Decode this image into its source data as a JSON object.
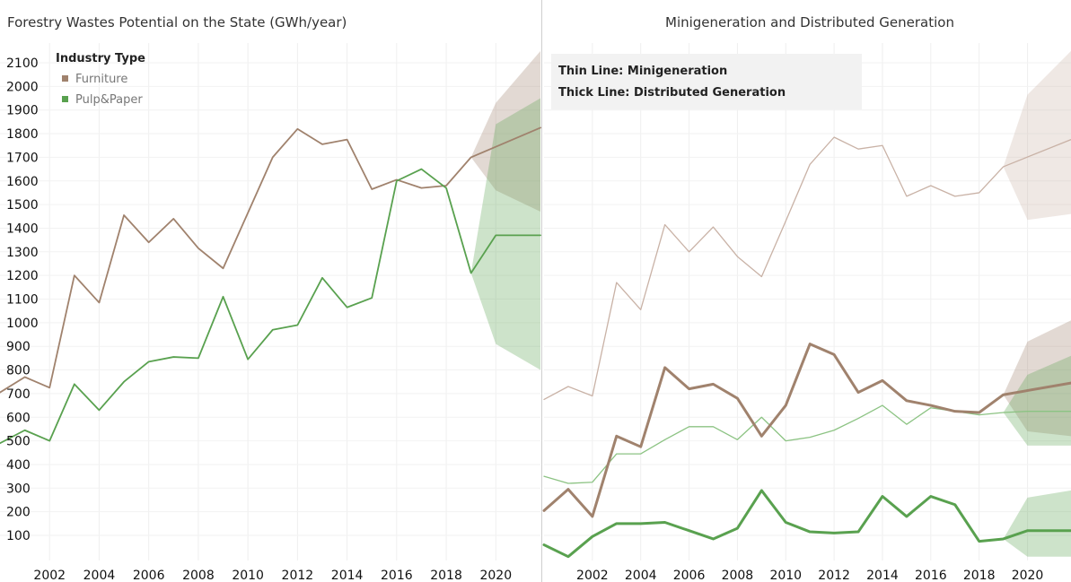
{
  "chart_data": [
    {
      "type": "line",
      "title": "Forestry Wastes Potential on the State (GWh/year)",
      "legend": {
        "title": "Industry Type",
        "placement": "top-left",
        "items": [
          {
            "label": "Furniture",
            "color": "#a0826d"
          },
          {
            "label": "Pulp&Paper",
            "color": "#59a14f"
          }
        ]
      },
      "x_ticks": [
        "2002",
        "2004",
        "2006",
        "2008",
        "2010",
        "2012",
        "2014",
        "2016",
        "2018",
        "2020"
      ],
      "y_ticks": [
        "100",
        "200",
        "300",
        "400",
        "500",
        "600",
        "700",
        "800",
        "900",
        "1000",
        "1100",
        "1200",
        "1300",
        "1400",
        "1500",
        "1600",
        "1700",
        "1800",
        "1900",
        "2000",
        "2100"
      ],
      "xlim": [
        2000,
        2021.8
      ],
      "ylim": [
        0,
        2150
      ],
      "grid": true,
      "series": [
        {
          "name": "Furniture",
          "color": "#a0826d",
          "x": [
            2000,
            2001,
            2002,
            2003,
            2004,
            2005,
            2006,
            2007,
            2008,
            2009,
            2010,
            2011,
            2012,
            2013,
            2014,
            2015,
            2016,
            2017,
            2018,
            2019,
            2021.8
          ],
          "values": [
            705,
            770,
            725,
            1200,
            1085,
            1455,
            1340,
            1440,
            1315,
            1230,
            1465,
            1700,
            1820,
            1755,
            1775,
            1565,
            1605,
            1570,
            1580,
            1700,
            1825
          ],
          "forecast_band": {
            "x": [
              2019,
              2020,
              2021.8
            ],
            "lower": [
              1700,
              1560,
              1470
            ],
            "upper": [
              1700,
              1930,
              2150
            ]
          }
        },
        {
          "name": "Pulp&Paper",
          "color": "#59a14f",
          "x": [
            2000,
            2001,
            2002,
            2003,
            2004,
            2005,
            2006,
            2007,
            2008,
            2009,
            2010,
            2011,
            2012,
            2013,
            2014,
            2015,
            2016,
            2017,
            2018,
            2019,
            2020,
            2021.8
          ],
          "values": [
            490,
            545,
            500,
            740,
            630,
            750,
            835,
            855,
            850,
            1110,
            845,
            970,
            990,
            1190,
            1065,
            1105,
            1600,
            1650,
            1570,
            1210,
            1370,
            1370
          ],
          "forecast_band": {
            "x": [
              2019,
              2020,
              2021.8
            ],
            "lower": [
              1210,
              910,
              800
            ],
            "upper": [
              1210,
              1840,
              1950
            ]
          }
        }
      ]
    },
    {
      "type": "line",
      "title": "Minigeneration and Distributed Generation",
      "annotation": {
        "line1": "Thin Line: Minigeneration",
        "line2": "Thick Line: Distributed Generation"
      },
      "x_ticks": [
        "2002",
        "2004",
        "2006",
        "2008",
        "2010",
        "2012",
        "2014",
        "2016",
        "2018",
        "2020"
      ],
      "xlim": [
        2000,
        2021.8
      ],
      "ylim": [
        0,
        2150
      ],
      "grid": true,
      "series": [
        {
          "name": "Furniture",
          "line": "thin",
          "color": "#c9b2a6",
          "x": [
            2000,
            2001,
            2002,
            2003,
            2004,
            2005,
            2006,
            2007,
            2008,
            2009,
            2010,
            2011,
            2012,
            2013,
            2014,
            2015,
            2016,
            2017,
            2018,
            2019,
            2021.8
          ],
          "values": [
            675,
            730,
            690,
            1170,
            1055,
            1415,
            1300,
            1405,
            1280,
            1195,
            1430,
            1670,
            1785,
            1735,
            1750,
            1535,
            1580,
            1535,
            1550,
            1660,
            1775
          ],
          "forecast_band": {
            "x": [
              2019,
              2020,
              2021.8
            ],
            "lower": [
              1660,
              1435,
              1460
            ],
            "upper": [
              1660,
              1965,
              2150
            ]
          }
        },
        {
          "name": "Pulp&Paper",
          "line": "thin",
          "color": "#8cc383",
          "x": [
            2000,
            2001,
            2002,
            2003,
            2004,
            2005,
            2006,
            2007,
            2008,
            2009,
            2010,
            2011,
            2012,
            2013,
            2014,
            2015,
            2016,
            2017,
            2018,
            2019,
            2020,
            2021.8
          ],
          "values": [
            350,
            320,
            325,
            445,
            445,
            505,
            560,
            560,
            505,
            600,
            500,
            515,
            545,
            595,
            650,
            570,
            640,
            625,
            610,
            620,
            625,
            625
          ]
        },
        {
          "name": "Furniture",
          "line": "thick",
          "color": "#a0826d",
          "x": [
            2000,
            2001,
            2002,
            2003,
            2004,
            2005,
            2006,
            2007,
            2008,
            2009,
            2010,
            2011,
            2012,
            2013,
            2014,
            2015,
            2016,
            2017,
            2018,
            2019,
            2021.8
          ],
          "values": [
            205,
            295,
            180,
            520,
            475,
            810,
            720,
            740,
            680,
            520,
            650,
            910,
            865,
            705,
            755,
            670,
            650,
            625,
            620,
            695,
            745
          ],
          "forecast_band": {
            "x": [
              2019,
              2020,
              2021.8
            ],
            "lower": [
              695,
              540,
              520
            ],
            "upper": [
              695,
              920,
              1010
            ]
          }
        },
        {
          "name": "Pulp&Paper",
          "line": "thick",
          "color": "#59a14f",
          "x": [
            2000,
            2001,
            2002,
            2003,
            2004,
            2005,
            2006,
            2007,
            2008,
            2009,
            2010,
            2011,
            2012,
            2013,
            2014,
            2015,
            2016,
            2017,
            2018,
            2019,
            2020,
            2021.8
          ],
          "values": [
            60,
            10,
            95,
            150,
            150,
            155,
            120,
            85,
            130,
            290,
            155,
            115,
            110,
            115,
            265,
            180,
            265,
            230,
            75,
            85,
            120,
            120
          ],
          "forecast_band": {
            "x": [
              2019,
              2020,
              2021.8
            ],
            "lower": [
              85,
              10,
              10
            ],
            "upper": [
              85,
              260,
              290
            ]
          }
        },
        {
          "name": "Pulp&Paper band",
          "line": "band-only",
          "color": "#59a14f",
          "forecast_band": {
            "x": [
              2019,
              2020,
              2021.8
            ],
            "lower": [
              620,
              480,
              480
            ],
            "upper": [
              620,
              780,
              860
            ]
          }
        }
      ]
    }
  ]
}
